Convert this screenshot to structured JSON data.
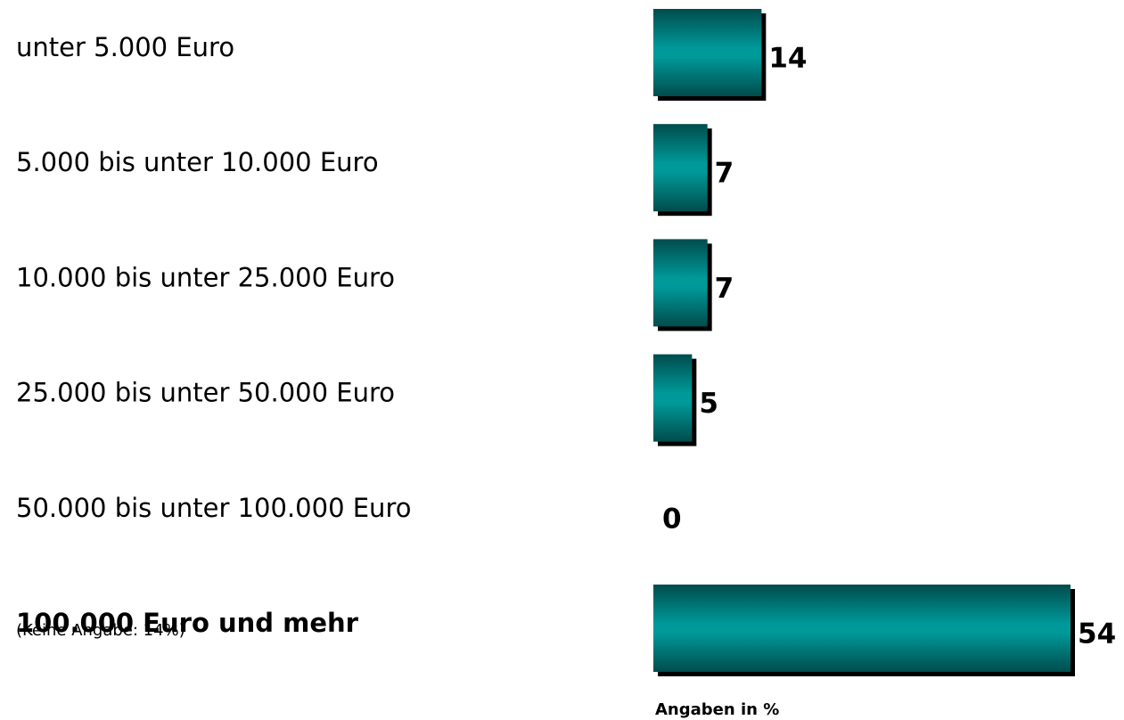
{
  "chart_data": {
    "type": "bar",
    "orientation": "horizontal",
    "categories": [
      "unter 5.000 Euro",
      "5.000 bis unter 10.000 Euro",
      "10.000 bis unter 25.000 Euro",
      "25.000 bis unter 50.000 Euro",
      "50.000 bis unter 100.000 Euro",
      "100.000 Euro und mehr"
    ],
    "values": [
      14,
      7,
      7,
      5,
      0,
      54
    ],
    "color": "#009999",
    "note": "(Keine Angabe: 14%)",
    "x_label": "Angaben in %"
  }
}
